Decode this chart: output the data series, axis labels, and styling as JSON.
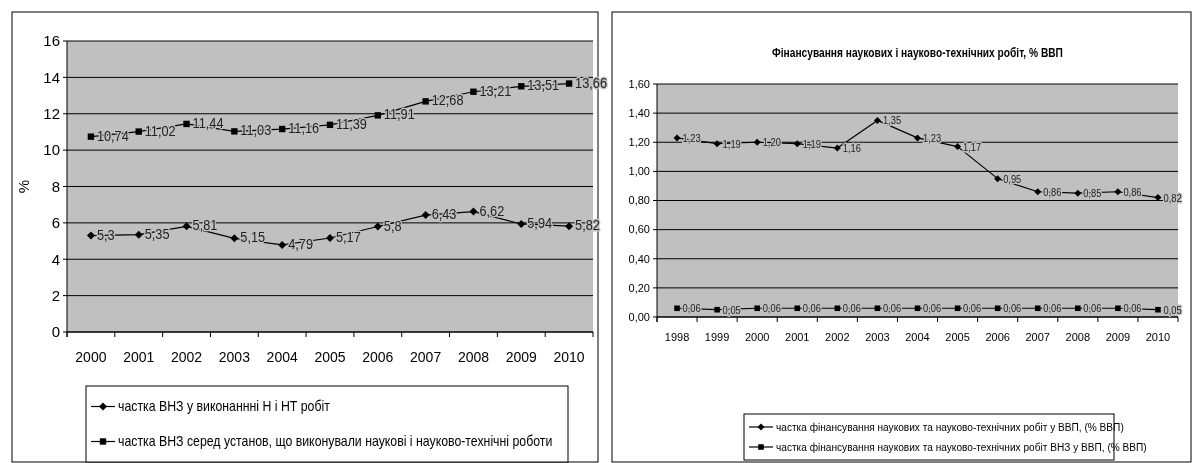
{
  "chart_data": [
    {
      "type": "line",
      "ylabel": "%",
      "categories": [
        "2000",
        "2001",
        "2002",
        "2003",
        "2004",
        "2005",
        "2006",
        "2007",
        "2008",
        "2009",
        "2010"
      ],
      "ylim": [
        0,
        16
      ],
      "yticks": [
        0,
        2,
        4,
        6,
        8,
        10,
        12,
        14,
        16
      ],
      "grid": "y",
      "legend": "bottom",
      "series": [
        {
          "name": "частка ВНЗ у виконаннні Н і НТ робіт",
          "color": "#000000",
          "marker": "diamond",
          "values": [
            5.3,
            5.35,
            5.81,
            5.15,
            4.79,
            5.17,
            5.8,
            6.43,
            6.62,
            5.94,
            5.82
          ],
          "value_labels": [
            "5,3",
            "5,35",
            "5,81",
            "5,15",
            "4,79",
            "5,17",
            "5,8",
            "6,43",
            "6,62",
            "5,94",
            "5,82"
          ]
        },
        {
          "name": "частка ВНЗ серед установ, що виконували наукові і науково-технічні роботи",
          "color": "#000000",
          "marker": "square",
          "values": [
            10.74,
            11.02,
            11.44,
            11.03,
            11.16,
            11.39,
            11.91,
            12.68,
            13.21,
            13.51,
            13.66
          ],
          "value_labels": [
            "10,74",
            "11,02",
            "11,44",
            "11,03",
            "11,16",
            "11,39",
            "11,91",
            "12,68",
            "13,21",
            "13,51",
            "13,66"
          ]
        }
      ]
    },
    {
      "type": "line",
      "title": "Фінансування наукових і науково-технічних робіт, % ВВП",
      "categories": [
        "1998",
        "1999",
        "2000",
        "2001",
        "2002",
        "2003",
        "2004",
        "2005",
        "2006",
        "2007",
        "2008",
        "2009",
        "2010"
      ],
      "ylim": [
        0,
        1.6
      ],
      "yticks": [
        {
          "value": 0,
          "label": "0,00"
        },
        {
          "value": 0.2,
          "label": "0,20"
        },
        {
          "value": 0.4,
          "label": "0,40"
        },
        {
          "value": 0.6,
          "label": "0,60"
        },
        {
          "value": 0.8,
          "label": "0,80"
        },
        {
          "value": 1,
          "label": "1,00"
        },
        {
          "value": 1.2,
          "label": "1,20"
        },
        {
          "value": 1.4,
          "label": "1,40"
        },
        {
          "value": 1.6,
          "label": "1,60"
        }
      ],
      "grid": "y",
      "legend": "bottom",
      "series": [
        {
          "name": "частка фінансування наукових та науково-технічних робіт у ВВП, (% ВВП)",
          "color": "#000000",
          "marker": "diamond",
          "values": [
            1.23,
            1.19,
            1.2,
            1.19,
            1.16,
            1.35,
            1.23,
            1.17,
            0.95,
            0.86,
            0.85,
            0.86,
            0.82
          ],
          "value_labels": [
            "1,23",
            "1,19",
            "1,20",
            "1,19",
            "1,16",
            "1,35",
            "1,23",
            "1,17",
            "0,95",
            "0,86",
            "0,85",
            "0,86",
            "0,82"
          ]
        },
        {
          "name": "частка фінансування наукових та науково-технічних робіт ВНЗ у ВВП, (% ВВП)",
          "color": "#000000",
          "marker": "square",
          "values": [
            0.06,
            0.05,
            0.06,
            0.06,
            0.06,
            0.06,
            0.06,
            0.06,
            0.06,
            0.06,
            0.06,
            0.06,
            0.05
          ],
          "value_labels": [
            "0,06",
            "0,05",
            "0,06",
            "0,06",
            "0,06",
            "0,06",
            "0,06",
            "0,06",
            "0,06",
            "0,06",
            "0,06",
            "0,06",
            "0,05"
          ]
        }
      ]
    }
  ]
}
